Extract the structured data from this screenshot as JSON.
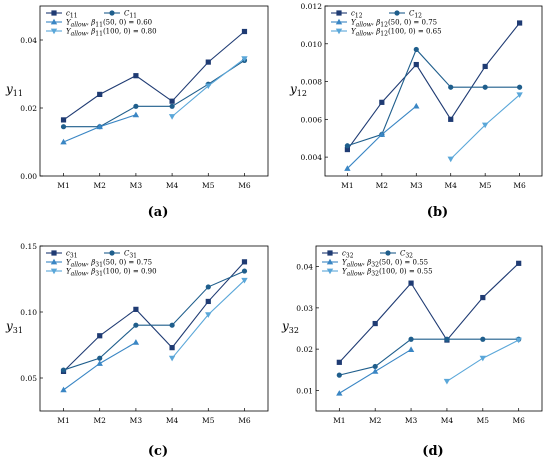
{
  "colors": {
    "c_series": "#1f3b73",
    "C_series": "#1f5e8c",
    "allow1_series": "#3a86c4",
    "allow2_series": "#5aa7d9",
    "axis": "#000000"
  },
  "chart_data": [
    {
      "id": "a",
      "type": "line",
      "caption": "(a)",
      "ylabel_base": "y",
      "ylabel_sub": "11",
      "categories": [
        "M1",
        "M2",
        "M3",
        "M4",
        "M5",
        "M6"
      ],
      "ylim": [
        0.0,
        0.05
      ],
      "yticks": [
        0.0,
        0.02,
        0.04
      ],
      "ytick_labels": [
        "0.00",
        "0.02",
        "0.04"
      ],
      "legend_position": "top-left",
      "series": [
        {
          "name": "c11",
          "legend_html": "<tspan font-style='italic'>c</tspan><tspan font-size='6' dy='2'>11</tspan>",
          "marker": "square",
          "color_key": "c_series",
          "values": [
            0.0165,
            0.024,
            0.0295,
            0.022,
            0.0335,
            0.0425
          ]
        },
        {
          "name": "C11",
          "legend_html": "<tspan font-style='italic'>C</tspan><tspan font-size='6' dy='2'>11</tspan>",
          "marker": "circle",
          "color_key": "C_series",
          "values": [
            0.0145,
            0.0145,
            0.0205,
            0.0205,
            0.027,
            0.034
          ]
        },
        {
          "name": "Yallow, β11(50,0) = 0.60",
          "legend_html": "<tspan font-style='italic'>Y</tspan><tspan font-size='6' dy='2' font-style='italic'>allow</tspan><tspan dy='-2'>, </tspan><tspan font-style='italic'>β</tspan><tspan font-size='6' dy='2'>11</tspan><tspan dy='-2'>(50, 0) = 0.60</tspan>",
          "marker": "triangle-up",
          "color_key": "allow1_series",
          "values": [
            0.01,
            0.0145,
            0.018,
            null,
            null,
            null
          ]
        },
        {
          "name": "Yallow, β11(100,0) = 0.80",
          "legend_html": "<tspan font-style='italic'>Y</tspan><tspan font-size='6' dy='2' font-style='italic'>allow</tspan><tspan dy='-2'>, </tspan><tspan font-style='italic'>β</tspan><tspan font-size='6' dy='2'>11</tspan><tspan dy='-2'>(100, 0) = 0.80</tspan>",
          "marker": "triangle-down",
          "color_key": "allow2_series",
          "values": [
            null,
            null,
            null,
            0.0175,
            0.0265,
            0.0345
          ]
        }
      ]
    },
    {
      "id": "b",
      "type": "line",
      "caption": "(b)",
      "ylabel_base": "y",
      "ylabel_sub": "12",
      "categories": [
        "M1",
        "M2",
        "M3",
        "M4",
        "M5",
        "M6"
      ],
      "ylim": [
        0.003,
        0.012
      ],
      "yticks": [
        0.004,
        0.006,
        0.008,
        0.01,
        0.012
      ],
      "ytick_labels": [
        "0.004",
        "0.006",
        "0.008",
        "0.010",
        "0.012"
      ],
      "legend_position": "top-left",
      "series": [
        {
          "name": "c12",
          "legend_html": "<tspan font-style='italic'>c</tspan><tspan font-size='6' dy='2'>12</tspan>",
          "marker": "square",
          "color_key": "c_series",
          "values": [
            0.0044,
            0.0069,
            0.0089,
            0.006,
            0.0088,
            0.0111
          ]
        },
        {
          "name": "C12",
          "legend_html": "<tspan font-style='italic'>C</tspan><tspan font-size='6' dy='2'>12</tspan>",
          "marker": "circle",
          "color_key": "C_series",
          "values": [
            0.0046,
            0.0052,
            0.0097,
            0.0077,
            0.0077,
            0.0077
          ]
        },
        {
          "name": "Yallow, β12(50,0) = 0.75",
          "legend_html": "<tspan font-style='italic'>Y</tspan><tspan font-size='6' dy='2' font-style='italic'>allow</tspan><tspan dy='-2'>, </tspan><tspan font-style='italic'>β</tspan><tspan font-size='6' dy='2'>12</tspan><tspan dy='-2'>(50, 0) = 0.75</tspan>",
          "marker": "triangle-up",
          "color_key": "allow1_series",
          "values": [
            0.0034,
            0.0052,
            0.0067,
            null,
            null,
            null
          ]
        },
        {
          "name": "Yallow, β12(100,0) = 0.65",
          "legend_html": "<tspan font-style='italic'>Y</tspan><tspan font-size='6' dy='2' font-style='italic'>allow</tspan><tspan dy='-2'>, </tspan><tspan font-style='italic'>β</tspan><tspan font-size='6' dy='2'>12</tspan><tspan dy='-2'>(100, 0) = 0.65</tspan>",
          "marker": "triangle-down",
          "color_key": "allow2_series",
          "values": [
            null,
            null,
            null,
            0.0039,
            0.0057,
            0.0073
          ]
        }
      ]
    },
    {
      "id": "c",
      "type": "line",
      "caption": "(c)",
      "ylabel_base": "y",
      "ylabel_sub": "31",
      "categories": [
        "M1",
        "M2",
        "M3",
        "M4",
        "M5",
        "M6"
      ],
      "ylim": [
        0.025,
        0.15
      ],
      "yticks": [
        0.05,
        0.1,
        0.15
      ],
      "ytick_labels": [
        "0.05",
        "0.10",
        "0.15"
      ],
      "legend_position": "top-left",
      "series": [
        {
          "name": "c31",
          "legend_html": "<tspan font-style='italic'>c</tspan><tspan font-size='6' dy='2'>31</tspan>",
          "marker": "square",
          "color_key": "c_series",
          "values": [
            0.055,
            0.082,
            0.102,
            0.073,
            0.108,
            0.138
          ]
        },
        {
          "name": "C31",
          "legend_html": "<tspan font-style='italic'>C</tspan><tspan font-size='6' dy='2'>31</tspan>",
          "marker": "circle",
          "color_key": "C_series",
          "values": [
            0.056,
            0.065,
            0.09,
            0.09,
            0.119,
            0.131
          ]
        },
        {
          "name": "Yallow, β31(50,0) = 0.75",
          "legend_html": "<tspan font-style='italic'>Y</tspan><tspan font-size='6' dy='2' font-style='italic'>allow</tspan><tspan dy='-2'>, </tspan><tspan font-style='italic'>β</tspan><tspan font-size='6' dy='2'>31</tspan><tspan dy='-2'>(50, 0) = 0.75</tspan>",
          "marker": "triangle-up",
          "color_key": "allow1_series",
          "values": [
            0.041,
            0.061,
            0.077,
            null,
            null,
            null
          ]
        },
        {
          "name": "Yallow, β31(100,0) = 0.90",
          "legend_html": "<tspan font-style='italic'>Y</tspan><tspan font-size='6' dy='2' font-style='italic'>allow</tspan><tspan dy='-2'>, </tspan><tspan font-style='italic'>β</tspan><tspan font-size='6' dy='2'>31</tspan><tspan dy='-2'>(100, 0) = 0.90</tspan>",
          "marker": "triangle-down",
          "color_key": "allow2_series",
          "values": [
            null,
            null,
            null,
            0.065,
            0.098,
            0.124
          ]
        }
      ]
    },
    {
      "id": "d",
      "type": "line",
      "caption": "(d)",
      "ylabel_base": "y",
      "ylabel_sub": "32",
      "categories": [
        "M1",
        "M2",
        "M3",
        "M4",
        "M5",
        "M6"
      ],
      "ylim": [
        0.005,
        0.045
      ],
      "yticks": [
        0.01,
        0.02,
        0.03,
        0.04
      ],
      "ytick_labels": [
        "0.01",
        "0.02",
        "0.03",
        "0.04"
      ],
      "legend_position": "top-left",
      "series": [
        {
          "name": "c32",
          "legend_html": "<tspan font-style='italic'>c</tspan><tspan font-size='6' dy='2'>32</tspan>",
          "marker": "square",
          "color_key": "c_series",
          "values": [
            0.0168,
            0.0262,
            0.036,
            0.0222,
            0.0325,
            0.0408
          ]
        },
        {
          "name": "C32",
          "legend_html": "<tspan font-style='italic'>C</tspan><tspan font-size='6' dy='2'>32</tspan>",
          "marker": "circle",
          "color_key": "C_series",
          "values": [
            0.0137,
            0.0158,
            0.0224,
            0.0224,
            0.0224,
            0.0224
          ]
        },
        {
          "name": "Yallow, β32(50,0) = 0.55",
          "legend_html": "<tspan font-style='italic'>Y</tspan><tspan font-size='6' dy='2' font-style='italic'>allow</tspan><tspan dy='-2'>, </tspan><tspan font-style='italic'>β</tspan><tspan font-size='6' dy='2'>32</tspan><tspan dy='-2'>(50, 0) = 0.55</tspan>",
          "marker": "triangle-up",
          "color_key": "allow1_series",
          "values": [
            0.0093,
            0.0146,
            0.0199,
            null,
            null,
            null
          ]
        },
        {
          "name": "Yallow, β32(100,0) = 0.55",
          "legend_html": "<tspan font-style='italic'>Y</tspan><tspan font-size='6' dy='2' font-style='italic'>allow</tspan><tspan dy='-2'>, </tspan><tspan font-style='italic'>β</tspan><tspan font-size='6' dy='2'>32</tspan><tspan dy='-2'>(100, 0) = 0.55</tspan>",
          "marker": "triangle-down",
          "color_key": "allow2_series",
          "values": [
            null,
            null,
            null,
            0.0122,
            0.0178,
            0.0222
          ]
        }
      ]
    }
  ]
}
